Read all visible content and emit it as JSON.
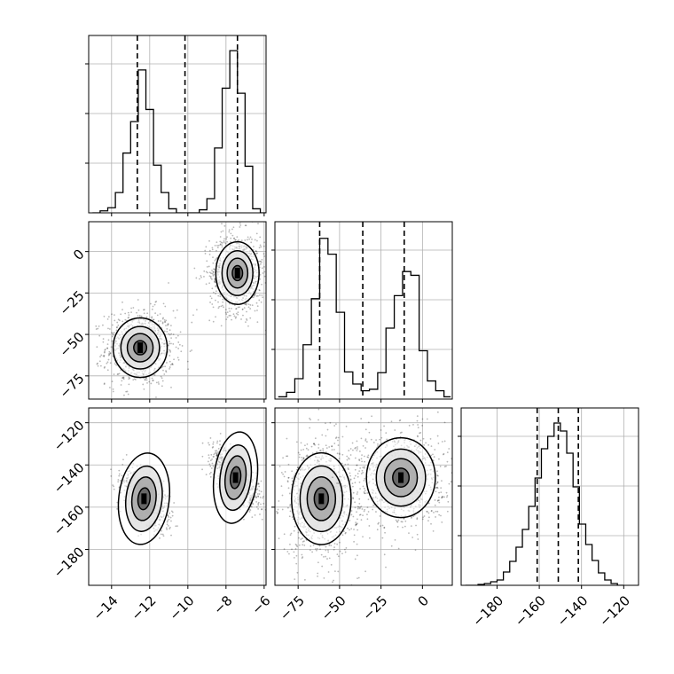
{
  "chart_data": {
    "type": "corner",
    "grid": true,
    "colors": {
      "line": "#000000",
      "grid": "#b0b0b0",
      "point": "#000000",
      "frame": "#000000"
    },
    "variables": [
      {
        "ticks": [
          -14,
          -12,
          -10,
          -8,
          -6
        ],
        "tick_labels": [
          "−14",
          "−12",
          "−10",
          "−8",
          "−6"
        ],
        "range": [
          -15.2,
          -5.9
        ]
      },
      {
        "ticks": [
          -75,
          -50,
          -25,
          0
        ],
        "tick_labels": [
          "−75",
          "−50",
          "−25",
          "0"
        ],
        "range": [
          -89,
          18
        ]
      },
      {
        "ticks": [
          -180,
          -160,
          -140,
          -120
        ],
        "tick_labels": [
          "−180",
          "−160",
          "−140",
          "−120"
        ],
        "range": [
          -197,
          -113
        ]
      }
    ],
    "panels": [
      {
        "kind": "histogram",
        "var": 0,
        "edges": [
          -15.0,
          -14.6,
          -14.2,
          -13.8,
          -13.4,
          -13.0,
          -12.6,
          -12.2,
          -11.8,
          -11.4,
          -11.0,
          -10.6,
          -10.2,
          -9.8,
          -9.4,
          -9.0,
          -8.6,
          -8.2,
          -7.8,
          -7.4,
          -7.0,
          -6.6,
          -6.2,
          -5.9
        ],
        "counts": [
          0,
          2,
          5,
          20,
          59,
          90,
          141,
          102,
          47,
          20,
          4,
          0,
          0,
          0,
          3,
          14,
          64,
          123,
          160,
          118,
          46,
          4,
          0
        ],
        "ymax": 175,
        "quantiles": [
          -12.65,
          -10.15,
          -7.4
        ]
      },
      {
        "kind": "histogram",
        "var": 1,
        "edges": [
          -87,
          -82,
          -77,
          -72,
          -67,
          -62,
          -57,
          -52,
          -47,
          -42,
          -37,
          -32,
          -27,
          -22,
          -17,
          -12,
          -7,
          -2,
          3,
          8,
          13,
          17
        ],
        "counts": [
          3,
          9,
          27,
          72,
          133,
          213,
          192,
          115,
          36,
          20,
          11,
          13,
          35,
          94,
          137,
          169,
          164,
          64,
          24,
          11,
          3
        ],
        "ymax": 235,
        "quantiles": [
          -62,
          -36,
          -11
        ]
      },
      {
        "kind": "histogram",
        "var": 2,
        "edges": [
          -195,
          -192,
          -189,
          -186,
          -183,
          -180,
          -177,
          -174,
          -171,
          -168,
          -165,
          -162,
          -159,
          -156,
          -153,
          -150,
          -147,
          -144,
          -141,
          -138,
          -135,
          -132,
          -129,
          -126,
          -123,
          -120
        ],
        "counts": [
          0,
          0,
          1,
          2,
          4,
          6,
          15,
          27,
          43,
          63,
          89,
          121,
          154,
          168,
          183,
          174,
          149,
          111,
          69,
          46,
          28,
          14,
          6,
          2,
          0
        ],
        "ymax": 200,
        "quantiles": [
          -161,
          -151,
          -141.5
        ]
      },
      {
        "kind": "density2d",
        "xvar": 0,
        "yvar": 1,
        "clusters": [
          {
            "center": [
              -12.5,
              -58
            ],
            "sigma": [
              0.75,
              9.5
            ]
          },
          {
            "center": [
              -7.4,
              -13
            ],
            "sigma": [
              0.6,
              10
            ]
          }
        ]
      },
      {
        "kind": "density2d",
        "xvar": 0,
        "yvar": 2,
        "clusters": [
          {
            "center": [
              -12.3,
              -156
            ],
            "sigma": [
              0.7,
              11.5
            ],
            "angle_deg": -64
          },
          {
            "center": [
              -7.5,
              -146
            ],
            "sigma": [
              0.6,
              11.5
            ],
            "angle_deg": -64
          }
        ]
      },
      {
        "kind": "density2d",
        "xvar": 1,
        "yvar": 2,
        "clusters": [
          {
            "center": [
              -61,
              -156
            ],
            "sigma": [
              9.5,
              11.5
            ]
          },
          {
            "center": [
              -13,
              -146
            ],
            "sigma": [
              11,
              10
            ]
          }
        ]
      }
    ]
  }
}
